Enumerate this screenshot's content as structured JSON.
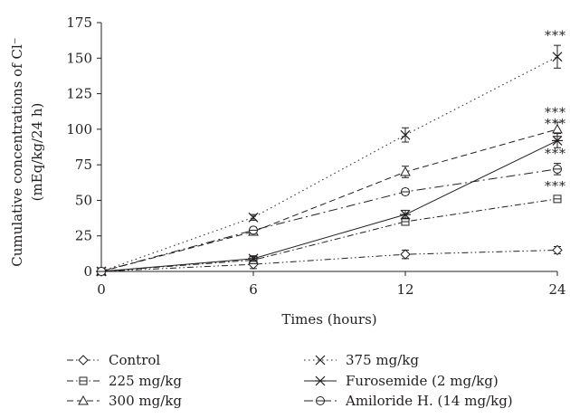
{
  "chart_data": {
    "type": "line",
    "x": [
      "0",
      "6",
      "12",
      "24"
    ],
    "xlabel": "Times (hours)",
    "ylabel_line1": "Cumulative concentrations of Cl⁻",
    "ylabel_line2": "(mEq/kg/24 h)",
    "yticks": [
      0,
      25,
      50,
      75,
      100,
      125,
      150,
      175
    ],
    "ylim": [
      0,
      175
    ],
    "grid": false,
    "legend_position": "bottom",
    "colors": {
      "ink": "#231f20"
    },
    "series": [
      {
        "name": "Control",
        "marker": "diamond",
        "dash": "dashdotdot",
        "values": [
          0,
          5,
          12,
          15
        ],
        "errors": [
          0,
          3,
          3,
          2.5
        ],
        "sig": [
          "",
          "",
          "",
          ""
        ]
      },
      {
        "name": "225 mg/kg",
        "marker": "square",
        "dash": "dashdot",
        "values": [
          0,
          8,
          35,
          51
        ],
        "errors": [
          0,
          2,
          2,
          2
        ],
        "sig": [
          "",
          "",
          "",
          "***"
        ]
      },
      {
        "name": "300 mg/kg",
        "marker": "triangle",
        "dash": "dash",
        "values": [
          0,
          28,
          70,
          100
        ],
        "errors": [
          0,
          2,
          4,
          5
        ],
        "sig": [
          "",
          "",
          "",
          "***"
        ]
      },
      {
        "name": "375 mg/kg",
        "marker": "x",
        "dash": "dot",
        "values": [
          0,
          38,
          96,
          151
        ],
        "errors": [
          0,
          2,
          5,
          8
        ],
        "sig": [
          "",
          "",
          "",
          "***"
        ]
      },
      {
        "name": "Furosemide (2 mg/kg)",
        "marker": "asterisk",
        "dash": "solid",
        "values": [
          0,
          9,
          40,
          92
        ],
        "errors": [
          0,
          2,
          3,
          5
        ],
        "sig": [
          "",
          "",
          "",
          "***"
        ]
      },
      {
        "name": "Amiloride H. (14 mg/kg)",
        "marker": "circle-dash",
        "dash": "longdashdot",
        "values": [
          0,
          29,
          56,
          72
        ],
        "errors": [
          0,
          2,
          2,
          4
        ],
        "sig": [
          "",
          "",
          "",
          "***"
        ]
      }
    ]
  }
}
